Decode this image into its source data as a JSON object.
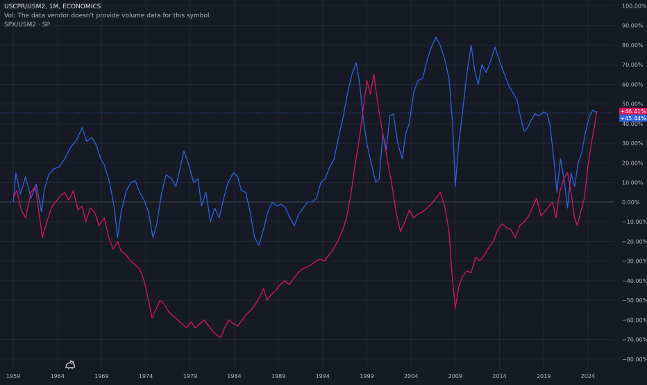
{
  "header": {
    "title": "USCPR/USM2, 1M, ECONOMICS",
    "volume_note": "Vol: The data vendor doesn't provide volume data for this symbol.",
    "overlay": "SPX/USM2 · SP"
  },
  "colors": {
    "background": "#161a25",
    "grid": "#232735",
    "zero_line": "#4a4e5a",
    "text": "#b2b5be",
    "blue": "#2e63e0",
    "red": "#d8175a"
  },
  "chart_data": {
    "type": "line",
    "xlabel": "",
    "ylabel": "",
    "x_range": [
      1957.5,
      2027
    ],
    "ylim": [
      -85,
      103
    ],
    "grid": true,
    "x_ticks": [
      "1959",
      "1964",
      "1969",
      "1974",
      "1979",
      "1984",
      "1989",
      "1994",
      "1999",
      "2004",
      "2009",
      "2014",
      "2019",
      "2024"
    ],
    "y_ticks": [
      100,
      90,
      80,
      70,
      60,
      50,
      40,
      30,
      20,
      10,
      0,
      -10,
      -20,
      -30,
      -40,
      -50,
      -60,
      -70,
      -80
    ],
    "y_tick_labels": [
      "100.00%",
      "90.00%",
      "80.00%",
      "70.00%",
      "60.00%",
      "50.00%",
      "40.00%",
      "30.00%",
      "20.00%",
      "10.00%",
      "0.00%",
      "−10.00%",
      "−20.00%",
      "−30.00%",
      "−40.00%",
      "−50.00%",
      "−60.00%",
      "−70.00%",
      "−80.00%"
    ],
    "series": [
      {
        "color": "#2e63e0",
        "last_value_label": "+45.44%",
        "points": [
          [
            1959.0,
            0
          ],
          [
            1959.3,
            15
          ],
          [
            1959.8,
            4
          ],
          [
            1960.4,
            13
          ],
          [
            1961.0,
            2
          ],
          [
            1961.6,
            9
          ],
          [
            1962.2,
            -5
          ],
          [
            1962.5,
            6
          ],
          [
            1963.0,
            14
          ],
          [
            1963.6,
            17
          ],
          [
            1964.2,
            18
          ],
          [
            1964.8,
            22
          ],
          [
            1965.5,
            28
          ],
          [
            1966.2,
            32
          ],
          [
            1966.8,
            38
          ],
          [
            1967.3,
            31
          ],
          [
            1967.9,
            33
          ],
          [
            1968.4,
            29
          ],
          [
            1968.9,
            22
          ],
          [
            1969.3,
            19
          ],
          [
            1969.9,
            10
          ],
          [
            1970.4,
            -2
          ],
          [
            1970.8,
            -18
          ],
          [
            1971.2,
            -5
          ],
          [
            1971.8,
            6
          ],
          [
            1972.3,
            10
          ],
          [
            1972.8,
            11
          ],
          [
            1973.3,
            5
          ],
          [
            1973.8,
            1
          ],
          [
            1974.3,
            -5
          ],
          [
            1974.8,
            -18
          ],
          [
            1975.2,
            -12
          ],
          [
            1975.8,
            5
          ],
          [
            1976.3,
            14
          ],
          [
            1976.9,
            12
          ],
          [
            1977.4,
            8
          ],
          [
            1977.9,
            18
          ],
          [
            1978.3,
            26
          ],
          [
            1978.8,
            20
          ],
          [
            1979.4,
            10
          ],
          [
            1979.9,
            12
          ],
          [
            1980.3,
            -2
          ],
          [
            1980.8,
            5
          ],
          [
            1981.3,
            -10
          ],
          [
            1981.8,
            -3
          ],
          [
            1982.3,
            -8
          ],
          [
            1982.8,
            2
          ],
          [
            1983.3,
            10
          ],
          [
            1983.9,
            15
          ],
          [
            1984.4,
            13
          ],
          [
            1984.8,
            6
          ],
          [
            1985.3,
            5
          ],
          [
            1985.8,
            -5
          ],
          [
            1986.3,
            -18
          ],
          [
            1986.8,
            -22
          ],
          [
            1987.3,
            -14
          ],
          [
            1987.8,
            -5
          ],
          [
            1988.3,
            0
          ],
          [
            1988.8,
            -2
          ],
          [
            1989.3,
            -1
          ],
          [
            1989.8,
            -3
          ],
          [
            1990.3,
            -8
          ],
          [
            1990.8,
            -12
          ],
          [
            1991.3,
            -6
          ],
          [
            1991.8,
            -3
          ],
          [
            1992.3,
            0
          ],
          [
            1992.8,
            0
          ],
          [
            1993.3,
            2
          ],
          [
            1993.8,
            10
          ],
          [
            1994.3,
            12
          ],
          [
            1994.8,
            18
          ],
          [
            1995.3,
            22
          ],
          [
            1995.8,
            33
          ],
          [
            1996.3,
            43
          ],
          [
            1996.8,
            55
          ],
          [
            1997.3,
            65
          ],
          [
            1997.8,
            71
          ],
          [
            1998.2,
            60
          ],
          [
            1998.6,
            42
          ],
          [
            1999.0,
            30
          ],
          [
            1999.5,
            20
          ],
          [
            2000.0,
            10
          ],
          [
            2000.4,
            12
          ],
          [
            2000.8,
            35
          ],
          [
            2001.2,
            27
          ],
          [
            2001.6,
            44
          ],
          [
            2002.0,
            45
          ],
          [
            2002.5,
            30
          ],
          [
            2003.0,
            22
          ],
          [
            2003.4,
            35
          ],
          [
            2003.8,
            40
          ],
          [
            2004.3,
            56
          ],
          [
            2004.8,
            62
          ],
          [
            2005.3,
            63
          ],
          [
            2005.8,
            72
          ],
          [
            2006.3,
            79
          ],
          [
            2006.8,
            84
          ],
          [
            2007.3,
            80
          ],
          [
            2007.8,
            73
          ],
          [
            2008.3,
            63
          ],
          [
            2008.7,
            40
          ],
          [
            2009.0,
            8
          ],
          [
            2009.4,
            30
          ],
          [
            2009.8,
            45
          ],
          [
            2010.3,
            65
          ],
          [
            2010.8,
            80
          ],
          [
            2011.2,
            67
          ],
          [
            2011.6,
            60
          ],
          [
            2012.0,
            70
          ],
          [
            2012.5,
            66
          ],
          [
            2013.0,
            72
          ],
          [
            2013.5,
            79
          ],
          [
            2014.0,
            72
          ],
          [
            2014.5,
            66
          ],
          [
            2015.0,
            60
          ],
          [
            2015.5,
            56
          ],
          [
            2016.0,
            52
          ],
          [
            2016.4,
            43
          ],
          [
            2016.8,
            36
          ],
          [
            2017.2,
            38
          ],
          [
            2017.6,
            42
          ],
          [
            2018.0,
            45
          ],
          [
            2018.5,
            44
          ],
          [
            2019.0,
            46
          ],
          [
            2019.4,
            45
          ],
          [
            2019.7,
            40
          ],
          [
            2020.2,
            20
          ],
          [
            2020.5,
            5
          ],
          [
            2020.9,
            22
          ],
          [
            2021.3,
            12
          ],
          [
            2021.7,
            -3
          ],
          [
            2022.1,
            15
          ],
          [
            2022.5,
            8
          ],
          [
            2022.9,
            20
          ],
          [
            2023.3,
            25
          ],
          [
            2023.7,
            35
          ],
          [
            2024.2,
            44
          ],
          [
            2024.6,
            47
          ],
          [
            2025.0,
            45.44
          ]
        ]
      },
      {
        "color": "#d8175a",
        "last_value_label": "+46.41%",
        "points": [
          [
            1959.0,
            2
          ],
          [
            1959.4,
            6
          ],
          [
            1959.9,
            -4
          ],
          [
            1960.4,
            -8
          ],
          [
            1961.0,
            5
          ],
          [
            1961.5,
            8
          ],
          [
            1961.9,
            -5
          ],
          [
            1962.3,
            -18
          ],
          [
            1962.8,
            -10
          ],
          [
            1963.3,
            -3
          ],
          [
            1963.8,
            0
          ],
          [
            1964.3,
            3
          ],
          [
            1964.8,
            5
          ],
          [
            1965.3,
            1
          ],
          [
            1965.8,
            6
          ],
          [
            1966.3,
            -4
          ],
          [
            1966.8,
            -2
          ],
          [
            1967.2,
            -10
          ],
          [
            1967.7,
            -3
          ],
          [
            1968.2,
            -5
          ],
          [
            1968.7,
            -12
          ],
          [
            1969.3,
            -8
          ],
          [
            1969.8,
            -18
          ],
          [
            1970.3,
            -24
          ],
          [
            1970.8,
            -20
          ],
          [
            1971.2,
            -25
          ],
          [
            1971.8,
            -27
          ],
          [
            1972.3,
            -30
          ],
          [
            1972.8,
            -32
          ],
          [
            1973.3,
            -34
          ],
          [
            1973.8,
            -40
          ],
          [
            1974.3,
            -50
          ],
          [
            1974.7,
            -59
          ],
          [
            1975.1,
            -55
          ],
          [
            1975.6,
            -50
          ],
          [
            1976.1,
            -52
          ],
          [
            1976.6,
            -56
          ],
          [
            1977.1,
            -58
          ],
          [
            1977.6,
            -60
          ],
          [
            1978.1,
            -62
          ],
          [
            1978.6,
            -64
          ],
          [
            1979.1,
            -61
          ],
          [
            1979.6,
            -64
          ],
          [
            1980.1,
            -62
          ],
          [
            1980.6,
            -60
          ],
          [
            1981.1,
            -63
          ],
          [
            1981.6,
            -66
          ],
          [
            1982.1,
            -68
          ],
          [
            1982.5,
            -69
          ],
          [
            1982.9,
            -64
          ],
          [
            1983.4,
            -60
          ],
          [
            1983.9,
            -62
          ],
          [
            1984.4,
            -63
          ],
          [
            1984.9,
            -60
          ],
          [
            1985.4,
            -57
          ],
          [
            1985.9,
            -55
          ],
          [
            1986.4,
            -52
          ],
          [
            1986.9,
            -48
          ],
          [
            1987.3,
            -44
          ],
          [
            1987.7,
            -50
          ],
          [
            1988.2,
            -47
          ],
          [
            1988.7,
            -45
          ],
          [
            1989.2,
            -42
          ],
          [
            1989.7,
            -40
          ],
          [
            1990.2,
            -42
          ],
          [
            1990.7,
            -39
          ],
          [
            1991.2,
            -36
          ],
          [
            1991.7,
            -34
          ],
          [
            1992.2,
            -33
          ],
          [
            1992.7,
            -32
          ],
          [
            1993.2,
            -30
          ],
          [
            1993.7,
            -29
          ],
          [
            1994.2,
            -30
          ],
          [
            1994.7,
            -27
          ],
          [
            1995.2,
            -24
          ],
          [
            1995.7,
            -20
          ],
          [
            1996.2,
            -15
          ],
          [
            1996.7,
            -8
          ],
          [
            1997.2,
            4
          ],
          [
            1997.7,
            20
          ],
          [
            1998.2,
            34
          ],
          [
            1998.6,
            48
          ],
          [
            1999.0,
            62
          ],
          [
            1999.4,
            55
          ],
          [
            1999.8,
            65
          ],
          [
            2000.3,
            48
          ],
          [
            2000.8,
            35
          ],
          [
            2001.3,
            22
          ],
          [
            2001.8,
            10
          ],
          [
            2002.3,
            -5
          ],
          [
            2002.8,
            -15
          ],
          [
            2003.3,
            -10
          ],
          [
            2003.8,
            -4
          ],
          [
            2004.3,
            -8
          ],
          [
            2004.8,
            -6
          ],
          [
            2005.3,
            -5
          ],
          [
            2005.8,
            -3
          ],
          [
            2006.3,
            -1
          ],
          [
            2006.8,
            2
          ],
          [
            2007.3,
            5
          ],
          [
            2007.8,
            -2
          ],
          [
            2008.3,
            -15
          ],
          [
            2008.6,
            -35
          ],
          [
            2009.0,
            -54
          ],
          [
            2009.4,
            -43
          ],
          [
            2009.8,
            -38
          ],
          [
            2010.3,
            -35
          ],
          [
            2010.8,
            -36
          ],
          [
            2011.3,
            -28
          ],
          [
            2011.8,
            -30
          ],
          [
            2012.3,
            -27
          ],
          [
            2012.8,
            -23
          ],
          [
            2013.3,
            -20
          ],
          [
            2013.8,
            -14
          ],
          [
            2014.3,
            -11
          ],
          [
            2014.8,
            -13
          ],
          [
            2015.3,
            -14
          ],
          [
            2015.8,
            -18
          ],
          [
            2016.3,
            -12
          ],
          [
            2016.8,
            -10
          ],
          [
            2017.3,
            -7
          ],
          [
            2017.8,
            -2
          ],
          [
            2018.2,
            2
          ],
          [
            2018.7,
            -7
          ],
          [
            2019.1,
            -5
          ],
          [
            2019.6,
            -2
          ],
          [
            2020.0,
            0
          ],
          [
            2020.4,
            -8
          ],
          [
            2020.8,
            5
          ],
          [
            2021.3,
            12
          ],
          [
            2021.7,
            15
          ],
          [
            2022.1,
            5
          ],
          [
            2022.5,
            -8
          ],
          [
            2022.8,
            -12
          ],
          [
            2023.2,
            -5
          ],
          [
            2023.6,
            2
          ],
          [
            2024.0,
            18
          ],
          [
            2024.4,
            30
          ],
          [
            2024.8,
            40
          ],
          [
            2025.0,
            46.41
          ]
        ]
      }
    ]
  }
}
